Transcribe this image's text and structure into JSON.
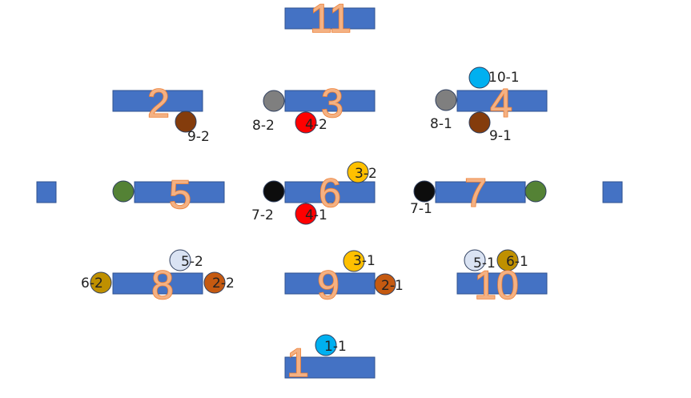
{
  "platforms": [
    {
      "id": "p11",
      "number": "11"
    },
    {
      "id": "p2",
      "number": "2"
    },
    {
      "id": "p3",
      "number": "3"
    },
    {
      "id": "p4",
      "number": "4"
    },
    {
      "id": "p5",
      "number": "5"
    },
    {
      "id": "p6",
      "number": "6"
    },
    {
      "id": "p7",
      "number": "7"
    },
    {
      "id": "p8",
      "number": "8"
    },
    {
      "id": "p9",
      "number": "9"
    },
    {
      "id": "p10",
      "number": "10"
    },
    {
      "id": "p1",
      "number": "1"
    }
  ],
  "side_blocks": [
    {
      "id": "left-block"
    },
    {
      "id": "right-block"
    }
  ],
  "balls": [
    {
      "id": "b10-1",
      "label": "10-1",
      "color": "#00b0f0"
    },
    {
      "id": "b9-2",
      "label": "9-2",
      "color": "#843c0c"
    },
    {
      "id": "b8-2",
      "label": "8-2",
      "color": "#7f7f7f"
    },
    {
      "id": "b4-2",
      "label": "4-2",
      "color": "#ff0000"
    },
    {
      "id": "b8-1",
      "label": "8-1",
      "color": "#7f7f7f"
    },
    {
      "id": "b9-1",
      "label": "9-1",
      "color": "#843c0c"
    },
    {
      "id": "b3-2",
      "label": "3-2",
      "color": "#ffc000"
    },
    {
      "id": "b5-left",
      "label": "",
      "color": "#548235"
    },
    {
      "id": "b7-2",
      "label": "7-2",
      "color": "#0d0d0d"
    },
    {
      "id": "b4-1",
      "label": "4-1",
      "color": "#ff0000"
    },
    {
      "id": "b7-1",
      "label": "7-1",
      "color": "#0d0d0d"
    },
    {
      "id": "b7-right",
      "label": "",
      "color": "#548235"
    },
    {
      "id": "b5-2",
      "label": "5-2",
      "color": "#dae3f3"
    },
    {
      "id": "b6-2",
      "label": "6-2",
      "color": "#bf9000"
    },
    {
      "id": "b2-2",
      "label": "2-2",
      "color": "#c55a11"
    },
    {
      "id": "b3-1",
      "label": "3-1",
      "color": "#ffc000"
    },
    {
      "id": "b2-1",
      "label": "2-1",
      "color": "#c55a11"
    },
    {
      "id": "b5-1",
      "label": "5-1",
      "color": "#dae3f3"
    },
    {
      "id": "b6-1",
      "label": "6-1",
      "color": "#bf9000"
    },
    {
      "id": "b1-1",
      "label": "1-1",
      "color": "#00b0f0"
    }
  ],
  "colors": {
    "platform_fill": "#4472c4",
    "platform_stroke": "#2f528f",
    "ball_stroke": "#2f3f5f"
  }
}
